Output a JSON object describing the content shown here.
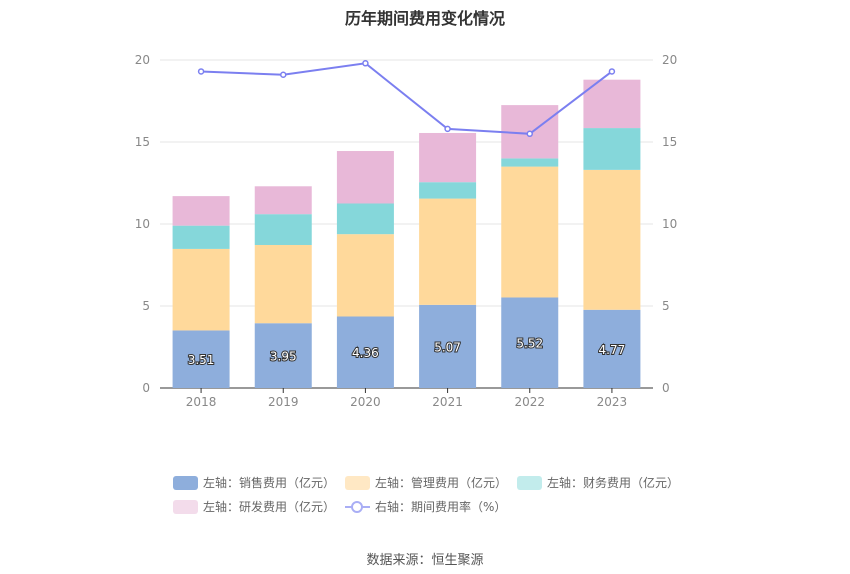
{
  "chart_data": {
    "type": "bar",
    "title": "历年期间费用变化情况",
    "categories": [
      "2018",
      "2019",
      "2020",
      "2021",
      "2022",
      "2023"
    ],
    "stacked": true,
    "y_left_lim": [
      0,
      20
    ],
    "y_right_lim": [
      0,
      20
    ],
    "y_ticks": [
      "0",
      "5",
      "10",
      "15",
      "20"
    ],
    "grid": true,
    "legend_position": "bottom",
    "series": [
      {
        "name": "左轴：销售费用（亿元）",
        "axis": "left",
        "type": "bar",
        "color": "#8eaedc",
        "values": [
          3.51,
          3.95,
          4.36,
          5.07,
          5.52,
          4.77
        ],
        "labels": [
          "3.51",
          "3.95",
          "4.36",
          "5.07",
          "5.52",
          "4.77"
        ]
      },
      {
        "name": "左轴：管理费用（亿元）",
        "axis": "left",
        "type": "bar",
        "color": "#ffd99b",
        "values": [
          4.97,
          4.77,
          5.02,
          6.48,
          7.98,
          8.53
        ]
      },
      {
        "name": "左轴：财务费用（亿元）",
        "axis": "left",
        "type": "bar",
        "color": "#85d7da",
        "values": [
          1.42,
          1.88,
          1.87,
          1.0,
          0.5,
          2.55
        ]
      },
      {
        "name": "左轴：研发费用（亿元）",
        "axis": "left",
        "type": "bar",
        "color": "#e8b8d8",
        "values": [
          1.8,
          1.7,
          3.2,
          3.0,
          3.25,
          2.95
        ]
      },
      {
        "name": "右轴：期间费用率（%）",
        "axis": "right",
        "type": "line",
        "color": "#7b7ff0",
        "values": [
          19.3,
          19.1,
          19.8,
          15.8,
          15.5,
          19.3
        ]
      }
    ],
    "source": "数据来源：恒生聚源"
  }
}
